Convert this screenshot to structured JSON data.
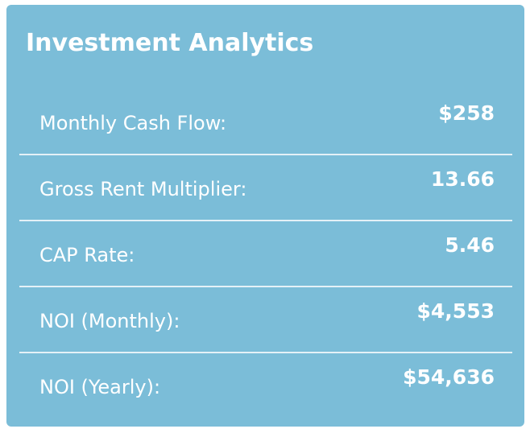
{
  "card": {
    "title": "Investment Analytics",
    "background_color": "#7bbdd8",
    "divider_color": "#e4f1f7",
    "text_color": "#ffffff"
  },
  "metrics": [
    {
      "label": "Monthly Cash Flow:",
      "value": "$258"
    },
    {
      "label": "Gross Rent Multiplier:",
      "value": "13.66"
    },
    {
      "label": "CAP Rate:",
      "value": "5.46"
    },
    {
      "label": "NOI (Monthly):",
      "value": "$4,553"
    },
    {
      "label": "NOI (Yearly):",
      "value": "$54,636"
    }
  ]
}
